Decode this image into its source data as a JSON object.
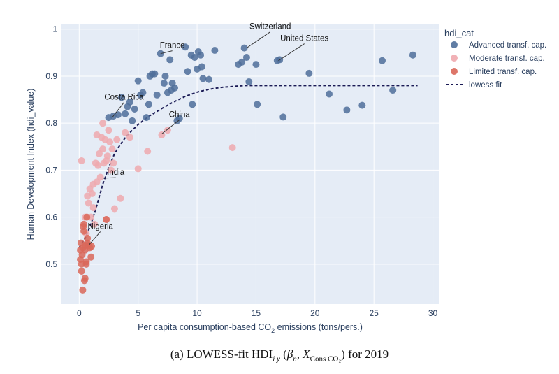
{
  "chart_data": {
    "type": "scatter",
    "xlabel_main": "Per capita consumption-based CO",
    "xlabel_sub": "2",
    "xlabel_tail": " emissions (tons/pers.)",
    "ylabel": "Human Development Index (hdi_value)",
    "xlim": [
      -1.5,
      30.5
    ],
    "ylim": [
      0.415,
      1.01
    ],
    "xticks": [
      0,
      5,
      10,
      15,
      20,
      25,
      30
    ],
    "yticks": [
      0.5,
      0.6,
      0.7,
      0.8,
      0.9,
      1
    ],
    "ytick_labels": [
      "0.5",
      "0.6",
      "0.7",
      "0.8",
      "0.9",
      "1"
    ],
    "legend": {
      "title": "hdi_cat",
      "entries": [
        {
          "label": "Advanced transf. cap.",
          "kind": "marker",
          "color": "#4f6f9a"
        },
        {
          "label": "Moderate transf. cap.",
          "kind": "marker",
          "color": "#efa9ae"
        },
        {
          "label": "Limited transf. cap.",
          "kind": "marker",
          "color": "#d96759"
        },
        {
          "label": "lowess fit",
          "kind": "line",
          "color": "#1a1a55"
        }
      ]
    },
    "series": [
      {
        "name": "Advanced transf. cap.",
        "color": "#4f6f9a",
        "points": [
          [
            2.5,
            0.812
          ],
          [
            2.9,
            0.815
          ],
          [
            3.3,
            0.818
          ],
          [
            3.6,
            0.855
          ],
          [
            3.9,
            0.82
          ],
          [
            4.1,
            0.835
          ],
          [
            4.3,
            0.845
          ],
          [
            4.5,
            0.805
          ],
          [
            4.7,
            0.83
          ],
          [
            5.0,
            0.89
          ],
          [
            5.2,
            0.86
          ],
          [
            5.4,
            0.865
          ],
          [
            5.7,
            0.812
          ],
          [
            5.9,
            0.84
          ],
          [
            6.0,
            0.9
          ],
          [
            6.2,
            0.905
          ],
          [
            6.4,
            0.905
          ],
          [
            6.6,
            0.86
          ],
          [
            6.9,
            0.948
          ],
          [
            7.2,
            0.885
          ],
          [
            7.3,
            0.9
          ],
          [
            7.5,
            0.865
          ],
          [
            7.7,
            0.935
          ],
          [
            7.8,
            0.87
          ],
          [
            7.9,
            0.885
          ],
          [
            8.1,
            0.875
          ],
          [
            8.3,
            0.805
          ],
          [
            8.5,
            0.81
          ],
          [
            9.0,
            0.962
          ],
          [
            9.2,
            0.91
          ],
          [
            9.5,
            0.945
          ],
          [
            9.6,
            0.84
          ],
          [
            9.8,
            0.94
          ],
          [
            10.0,
            0.915
          ],
          [
            10.1,
            0.952
          ],
          [
            10.3,
            0.945
          ],
          [
            10.4,
            0.92
          ],
          [
            10.5,
            0.895
          ],
          [
            11.0,
            0.893
          ],
          [
            11.5,
            0.955
          ],
          [
            13.5,
            0.925
          ],
          [
            13.8,
            0.93
          ],
          [
            14.0,
            0.96
          ],
          [
            14.2,
            0.94
          ],
          [
            14.4,
            0.888
          ],
          [
            15.0,
            0.925
          ],
          [
            15.1,
            0.84
          ],
          [
            16.8,
            0.933
          ],
          [
            17.0,
            0.935
          ],
          [
            17.3,
            0.813
          ],
          [
            19.5,
            0.906
          ],
          [
            21.2,
            0.862
          ],
          [
            22.7,
            0.828
          ],
          [
            24.0,
            0.838
          ],
          [
            25.7,
            0.933
          ],
          [
            26.6,
            0.87
          ],
          [
            28.3,
            0.945
          ]
        ]
      },
      {
        "name": "Moderate transf. cap.",
        "color": "#efa9ae",
        "points": [
          [
            0.2,
            0.72
          ],
          [
            0.5,
            0.6
          ],
          [
            0.6,
            0.565
          ],
          [
            0.7,
            0.645
          ],
          [
            0.8,
            0.63
          ],
          [
            0.9,
            0.66
          ],
          [
            1.0,
            0.6
          ],
          [
            1.1,
            0.65
          ],
          [
            1.2,
            0.67
          ],
          [
            1.3,
            0.585
          ],
          [
            1.4,
            0.715
          ],
          [
            1.5,
            0.675
          ],
          [
            1.5,
            0.775
          ],
          [
            1.6,
            0.71
          ],
          [
            1.7,
            0.735
          ],
          [
            1.8,
            0.685
          ],
          [
            1.9,
            0.77
          ],
          [
            2.0,
            0.8
          ],
          [
            2.0,
            0.745
          ],
          [
            2.1,
            0.715
          ],
          [
            2.2,
            0.765
          ],
          [
            2.3,
            0.72
          ],
          [
            2.4,
            0.73
          ],
          [
            2.5,
            0.785
          ],
          [
            2.6,
            0.76
          ],
          [
            2.7,
            0.7
          ],
          [
            2.8,
            0.745
          ],
          [
            2.9,
            0.715
          ],
          [
            3.0,
            0.618
          ],
          [
            3.2,
            0.765
          ],
          [
            3.5,
            0.64
          ],
          [
            3.9,
            0.78
          ],
          [
            4.3,
            0.77
          ],
          [
            5.0,
            0.703
          ],
          [
            5.8,
            0.74
          ],
          [
            7.0,
            0.775
          ],
          [
            7.5,
            0.785
          ],
          [
            13.0,
            0.748
          ],
          [
            2.3,
            0.595
          ],
          [
            1.2,
            0.62
          ]
        ]
      },
      {
        "name": "Limited transf. cap.",
        "color": "#d96759",
        "points": [
          [
            0.1,
            0.53
          ],
          [
            0.1,
            0.51
          ],
          [
            0.15,
            0.545
          ],
          [
            0.2,
            0.485
          ],
          [
            0.2,
            0.5
          ],
          [
            0.3,
            0.445
          ],
          [
            0.3,
            0.535
          ],
          [
            0.4,
            0.57
          ],
          [
            0.4,
            0.585
          ],
          [
            0.45,
            0.465
          ],
          [
            0.5,
            0.47
          ],
          [
            0.5,
            0.53
          ],
          [
            0.55,
            0.54
          ],
          [
            0.6,
            0.5
          ],
          [
            0.6,
            0.505
          ],
          [
            0.65,
            0.6
          ],
          [
            0.7,
            0.545
          ],
          [
            0.7,
            0.555
          ],
          [
            0.8,
            0.54
          ],
          [
            0.9,
            0.535
          ],
          [
            1.0,
            0.515
          ],
          [
            1.05,
            0.538
          ],
          [
            2.3,
            0.595
          ],
          [
            0.35,
            0.58
          ],
          [
            0.25,
            0.52
          ]
        ]
      }
    ],
    "lowess": [
      [
        0,
        0.535
      ],
      [
        0.5,
        0.555
      ],
      [
        1.0,
        0.585
      ],
      [
        1.5,
        0.625
      ],
      [
        2.0,
        0.67
      ],
      [
        2.5,
        0.705
      ],
      [
        3.0,
        0.735
      ],
      [
        3.5,
        0.755
      ],
      [
        4.0,
        0.772
      ],
      [
        4.5,
        0.785
      ],
      [
        5.0,
        0.797
      ],
      [
        5.5,
        0.807
      ],
      [
        6.0,
        0.816
      ],
      [
        7.0,
        0.831
      ],
      [
        8.0,
        0.845
      ],
      [
        9.0,
        0.857
      ],
      [
        10.0,
        0.866
      ],
      [
        11.0,
        0.872
      ],
      [
        12.0,
        0.876
      ],
      [
        13.0,
        0.878
      ],
      [
        14.0,
        0.88
      ],
      [
        16.0,
        0.88
      ],
      [
        20.0,
        0.88
      ],
      [
        24.0,
        0.88
      ],
      [
        28.7,
        0.88
      ]
    ],
    "annotations": [
      {
        "label": "Switzerland",
        "point": [
          14.2,
          0.96
        ],
        "text_at": [
          16.2,
          1.0
        ],
        "anchor": "middle"
      },
      {
        "label": "United States",
        "point": [
          16.9,
          0.933
        ],
        "text_at": [
          19.1,
          0.975
        ],
        "anchor": "middle"
      },
      {
        "label": "France",
        "point": [
          6.9,
          0.948
        ],
        "text_at": [
          7.9,
          0.96
        ],
        "anchor": "middle"
      },
      {
        "label": "Costa Rica",
        "point": [
          2.8,
          0.812
        ],
        "text_at": [
          3.8,
          0.85
        ],
        "anchor": "middle"
      },
      {
        "label": "China",
        "point": [
          7.0,
          0.777
        ],
        "text_at": [
          8.5,
          0.813
        ],
        "anchor": "middle"
      },
      {
        "label": "India",
        "point": [
          2.0,
          0.683
        ],
        "text_at": [
          3.1,
          0.69
        ],
        "anchor": "middle"
      },
      {
        "label": "Nigeria",
        "point": [
          0.8,
          0.54
        ],
        "text_at": [
          1.8,
          0.575
        ],
        "anchor": "middle"
      }
    ]
  },
  "caption": {
    "prefix": "(a) LOWESS-fit ",
    "hdi": "HDI",
    "sub_iy": "i y",
    "args_open": " (",
    "beta": "β",
    "beta_sub": "n",
    "comma": ", ",
    "xvar": "X",
    "xvar_sub": "Cons CO₂",
    "args_close": ")",
    "suffix": " for 2019"
  }
}
